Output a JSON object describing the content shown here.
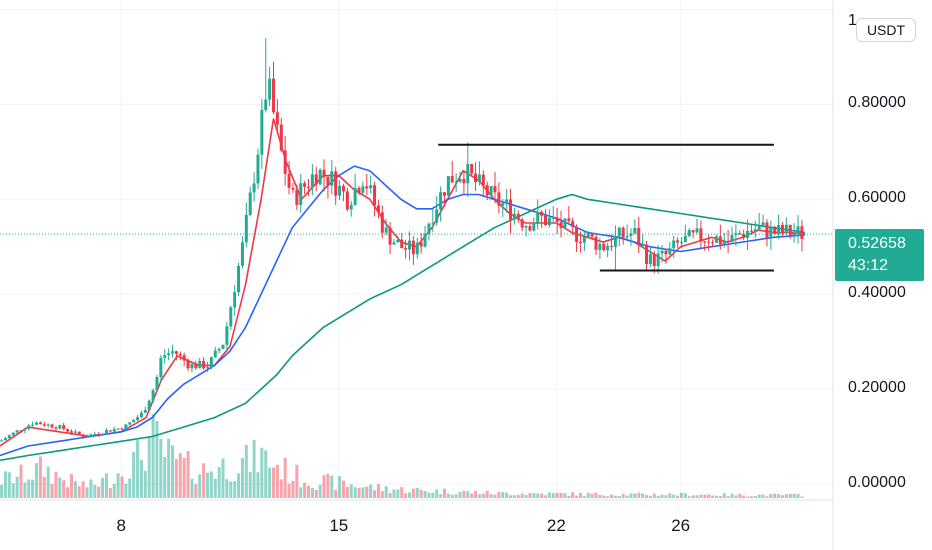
{
  "chart_data": {
    "type": "candlestick",
    "quote_currency": "USDT",
    "y_axis": {
      "ticks": [
        "0.00000",
        "0.20000",
        "0.40000",
        "0.60000",
        "0.80000"
      ],
      "top_tick": "1",
      "ylim": [
        0,
        1.02
      ]
    },
    "x_axis": {
      "ticks": [
        {
          "label": "8",
          "day": 8
        },
        {
          "label": "15",
          "day": 15
        },
        {
          "label": "22",
          "day": 22
        },
        {
          "label": "26",
          "day": 26
        }
      ],
      "xlim": [
        4.1,
        30.9
      ]
    },
    "last_price": {
      "value": 0.52658,
      "label": "0.52658",
      "countdown": "43:12"
    },
    "horizontal_lines": [
      {
        "y": 0.715,
        "x_start_day": 18.2,
        "x_end_day": 29.0
      },
      {
        "y": 0.45,
        "x_start_day": 23.4,
        "x_end_day": 29.0
      }
    ],
    "price_path": [
      [
        4.1,
        0.09
      ],
      [
        4.6,
        0.11
      ],
      [
        5.2,
        0.13
      ],
      [
        6.0,
        0.12
      ],
      [
        6.8,
        0.1
      ],
      [
        7.4,
        0.11
      ],
      [
        8.1,
        0.12
      ],
      [
        8.7,
        0.15
      ],
      [
        9.1,
        0.21
      ],
      [
        9.3,
        0.27
      ],
      [
        9.7,
        0.28
      ],
      [
        10.2,
        0.25
      ],
      [
        10.8,
        0.25
      ],
      [
        11.3,
        0.3
      ],
      [
        11.6,
        0.4
      ],
      [
        11.9,
        0.5
      ],
      [
        12.2,
        0.62
      ],
      [
        12.5,
        0.75
      ],
      [
        12.7,
        0.85
      ],
      [
        12.9,
        0.78
      ],
      [
        13.2,
        0.68
      ],
      [
        13.5,
        0.6
      ],
      [
        13.8,
        0.62
      ],
      [
        14.3,
        0.66
      ],
      [
        14.8,
        0.64
      ],
      [
        15.3,
        0.6
      ],
      [
        15.8,
        0.65
      ],
      [
        16.2,
        0.58
      ],
      [
        16.5,
        0.53
      ],
      [
        17.0,
        0.5
      ],
      [
        17.5,
        0.49
      ],
      [
        18.0,
        0.57
      ],
      [
        18.5,
        0.64
      ],
      [
        19.0,
        0.66
      ],
      [
        19.5,
        0.63
      ],
      [
        20.0,
        0.6
      ],
      [
        20.5,
        0.58
      ],
      [
        21.0,
        0.55
      ],
      [
        21.5,
        0.56
      ],
      [
        22.0,
        0.55
      ],
      [
        22.5,
        0.53
      ],
      [
        23.0,
        0.52
      ],
      [
        23.5,
        0.5
      ],
      [
        24.0,
        0.52
      ],
      [
        24.5,
        0.53
      ],
      [
        25.0,
        0.47
      ],
      [
        25.5,
        0.48
      ],
      [
        26.0,
        0.51
      ],
      [
        26.5,
        0.52
      ],
      [
        27.0,
        0.52
      ],
      [
        27.5,
        0.51
      ],
      [
        28.0,
        0.53
      ],
      [
        28.5,
        0.54
      ],
      [
        29.0,
        0.53
      ],
      [
        29.5,
        0.53
      ],
      [
        30.0,
        0.527
      ]
    ],
    "wick_spikes": [
      {
        "day": 12.6,
        "high": 0.94
      },
      {
        "day": 12.9,
        "high": 0.89
      },
      {
        "day": 19.1,
        "high": 0.72
      },
      {
        "day": 23.9,
        "low": 0.45
      }
    ],
    "moving_averages": [
      {
        "color": "#f23645",
        "points": [
          [
            4.1,
            0.08
          ],
          [
            5.0,
            0.12
          ],
          [
            6.0,
            0.11
          ],
          [
            7.0,
            0.1
          ],
          [
            8.0,
            0.11
          ],
          [
            8.8,
            0.14
          ],
          [
            9.3,
            0.22
          ],
          [
            9.8,
            0.27
          ],
          [
            10.5,
            0.25
          ],
          [
            11.0,
            0.25
          ],
          [
            11.5,
            0.29
          ],
          [
            12.0,
            0.42
          ],
          [
            12.5,
            0.6
          ],
          [
            12.9,
            0.77
          ],
          [
            13.3,
            0.68
          ],
          [
            13.8,
            0.6
          ],
          [
            14.5,
            0.65
          ],
          [
            15.0,
            0.65
          ],
          [
            15.5,
            0.62
          ],
          [
            16.0,
            0.6
          ],
          [
            16.5,
            0.55
          ],
          [
            17.0,
            0.51
          ],
          [
            17.5,
            0.5
          ],
          [
            18.0,
            0.54
          ],
          [
            18.5,
            0.6
          ],
          [
            19.0,
            0.66
          ],
          [
            19.5,
            0.64
          ],
          [
            20.0,
            0.6
          ],
          [
            20.5,
            0.57
          ],
          [
            21.0,
            0.55
          ],
          [
            22.0,
            0.55
          ],
          [
            22.5,
            0.53
          ],
          [
            23.0,
            0.52
          ],
          [
            23.5,
            0.51
          ],
          [
            24.0,
            0.52
          ],
          [
            24.5,
            0.51
          ],
          [
            25.0,
            0.49
          ],
          [
            25.5,
            0.47
          ],
          [
            26.0,
            0.5
          ],
          [
            26.5,
            0.51
          ],
          [
            27.0,
            0.52
          ],
          [
            27.5,
            0.51
          ],
          [
            28.0,
            0.52
          ],
          [
            28.5,
            0.535
          ],
          [
            29.0,
            0.53
          ],
          [
            29.5,
            0.53
          ],
          [
            30.0,
            0.527
          ]
        ]
      },
      {
        "color": "#2962ff",
        "points": [
          [
            4.1,
            0.06
          ],
          [
            5.0,
            0.08
          ],
          [
            6.0,
            0.09
          ],
          [
            7.0,
            0.1
          ],
          [
            8.0,
            0.11
          ],
          [
            8.5,
            0.12
          ],
          [
            9.0,
            0.14
          ],
          [
            9.5,
            0.18
          ],
          [
            10.0,
            0.21
          ],
          [
            10.5,
            0.23
          ],
          [
            11.0,
            0.25
          ],
          [
            11.5,
            0.28
          ],
          [
            12.0,
            0.33
          ],
          [
            12.5,
            0.4
          ],
          [
            13.0,
            0.47
          ],
          [
            13.5,
            0.54
          ],
          [
            14.0,
            0.58
          ],
          [
            14.5,
            0.62
          ],
          [
            15.0,
            0.65
          ],
          [
            15.5,
            0.67
          ],
          [
            16.0,
            0.66
          ],
          [
            16.5,
            0.63
          ],
          [
            17.0,
            0.6
          ],
          [
            17.5,
            0.58
          ],
          [
            18.0,
            0.58
          ],
          [
            18.5,
            0.6
          ],
          [
            19.0,
            0.61
          ],
          [
            19.5,
            0.61
          ],
          [
            20.0,
            0.6
          ],
          [
            20.5,
            0.59
          ],
          [
            21.0,
            0.58
          ],
          [
            21.5,
            0.57
          ],
          [
            22.0,
            0.56
          ],
          [
            23.0,
            0.53
          ],
          [
            24.0,
            0.52
          ],
          [
            25.0,
            0.5
          ],
          [
            26.0,
            0.49
          ],
          [
            27.0,
            0.5
          ],
          [
            28.0,
            0.51
          ],
          [
            29.0,
            0.52
          ],
          [
            30.0,
            0.525
          ]
        ]
      },
      {
        "color": "#089981",
        "points": [
          [
            4.1,
            0.05
          ],
          [
            5.0,
            0.06
          ],
          [
            6.0,
            0.07
          ],
          [
            7.0,
            0.08
          ],
          [
            8.0,
            0.09
          ],
          [
            9.0,
            0.1
          ],
          [
            10.0,
            0.12
          ],
          [
            11.0,
            0.14
          ],
          [
            12.0,
            0.17
          ],
          [
            12.5,
            0.2
          ],
          [
            13.0,
            0.23
          ],
          [
            13.5,
            0.27
          ],
          [
            14.0,
            0.3
          ],
          [
            14.5,
            0.33
          ],
          [
            15.0,
            0.35
          ],
          [
            16.0,
            0.39
          ],
          [
            17.0,
            0.42
          ],
          [
            18.0,
            0.46
          ],
          [
            19.0,
            0.5
          ],
          [
            20.0,
            0.54
          ],
          [
            21.0,
            0.57
          ],
          [
            22.0,
            0.6
          ],
          [
            22.5,
            0.61
          ],
          [
            23.0,
            0.6
          ],
          [
            24.0,
            0.59
          ],
          [
            25.0,
            0.58
          ],
          [
            26.0,
            0.57
          ],
          [
            27.0,
            0.56
          ],
          [
            28.0,
            0.55
          ],
          [
            29.0,
            0.54
          ],
          [
            30.0,
            0.53
          ]
        ]
      }
    ],
    "volume_profile": [
      [
        4.1,
        0.3
      ],
      [
        5.0,
        0.4
      ],
      [
        5.5,
        0.5
      ],
      [
        6.0,
        0.35
      ],
      [
        6.5,
        0.25
      ],
      [
        7.0,
        0.2
      ],
      [
        7.5,
        0.3
      ],
      [
        8.0,
        0.45
      ],
      [
        8.5,
        0.65
      ],
      [
        9.0,
        1.0
      ],
      [
        9.5,
        0.7
      ],
      [
        10.0,
        0.55
      ],
      [
        10.5,
        0.45
      ],
      [
        11.0,
        0.5
      ],
      [
        11.5,
        0.55
      ],
      [
        12.0,
        0.6
      ],
      [
        12.5,
        0.7
      ],
      [
        13.0,
        0.55
      ],
      [
        13.5,
        0.4
      ],
      [
        14.0,
        0.3
      ],
      [
        15.0,
        0.25
      ],
      [
        16.0,
        0.18
      ],
      [
        17.0,
        0.14
      ],
      [
        18.0,
        0.12
      ],
      [
        19.0,
        0.1
      ],
      [
        20.0,
        0.08
      ],
      [
        22.0,
        0.07
      ],
      [
        24.0,
        0.06
      ],
      [
        26.0,
        0.06
      ],
      [
        28.0,
        0.05
      ],
      [
        30.0,
        0.05
      ]
    ]
  }
}
